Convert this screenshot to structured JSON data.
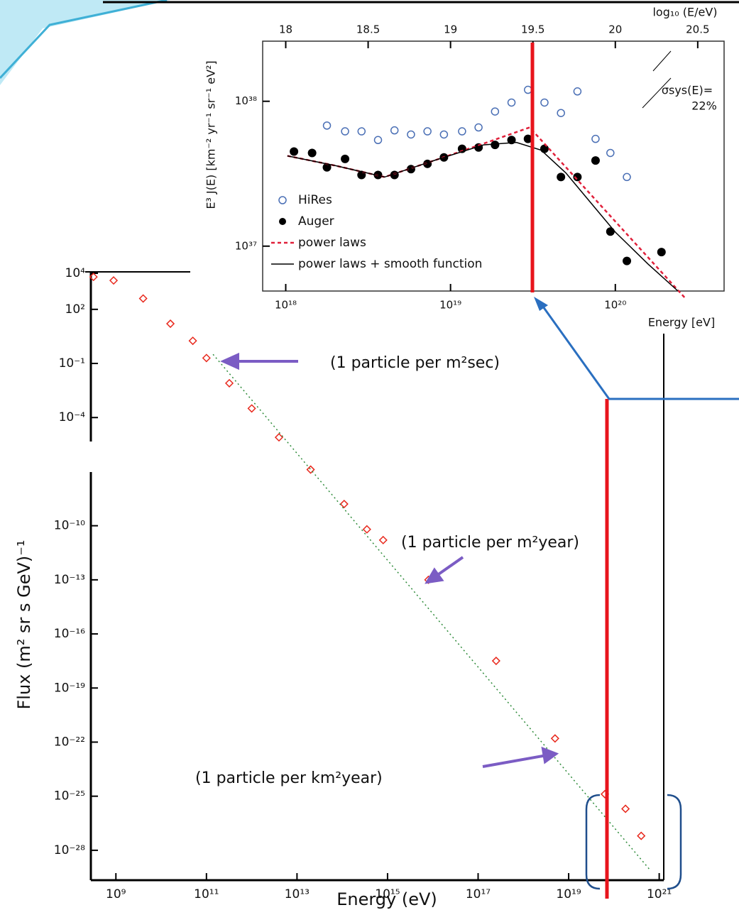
{
  "chart_data": [
    {
      "type": "scatter",
      "log_scale": true,
      "x_label": "Energy (eV)",
      "y_label": "Flux (m² sr s GeV)⁻¹",
      "xlim": [
        280000000.0,
        1.26e+21
      ],
      "ylim": [
        2.2e-30,
        12000.0
      ],
      "xticks": [
        {
          "value": 1000000000.0,
          "label": "10⁹"
        },
        {
          "value": 100000000000.0,
          "label": "10¹¹"
        },
        {
          "value": 10000000000000.0,
          "label": "10¹³"
        },
        {
          "value": 1000000000000000.0,
          "label": "10¹⁵"
        },
        {
          "value": 1e+17,
          "label": "10¹⁷"
        },
        {
          "value": 1e+19,
          "label": "10¹⁹"
        },
        {
          "value": 1e+21,
          "label": "10²¹"
        }
      ],
      "yticks": [
        {
          "value": 10000.0,
          "label": "10⁴"
        },
        {
          "value": 100,
          "label": "10²"
        },
        {
          "value": 0.1,
          "label": "10⁻¹"
        },
        {
          "value": 0.0001,
          "label": "10⁻⁴"
        },
        {
          "value": 1e-10,
          "label": "10⁻¹⁰"
        },
        {
          "value": 1e-13,
          "label": "10⁻¹³"
        },
        {
          "value": 1e-16,
          "label": "10⁻¹⁶"
        },
        {
          "value": 1e-19,
          "label": "10⁻¹⁹"
        },
        {
          "value": 1e-22,
          "label": "10⁻²²"
        },
        {
          "value": 1e-25,
          "label": "10⁻²⁵"
        },
        {
          "value": 1e-28,
          "label": "10⁻²⁸"
        }
      ],
      "series": [
        {
          "color": "#e8281c",
          "marker": "diamond",
          "x": [
            320000000.0,
            890000000.0,
            4000000000.0,
            16000000000.0,
            50000000000.0,
            100000000000.0,
            320000000000.0,
            1000000000000.0,
            4000000000000.0,
            20000000000000.0,
            110000000000000.0,
            350000000000000.0,
            800000000000000.0,
            8000000000000000.0,
            2.5e+17,
            5e+18,
            6.3e+19,
            1.8e+20,
            4e+20
          ],
          "values": [
            6300.0,
            4000.0,
            400.0,
            16,
            1.8,
            0.2,
            0.008,
            0.00032,
            8e-06,
            1.3e-07,
            1.6e-09,
            6.3e-11,
            1.6e-11,
            1e-13,
            3.2e-18,
            1.6e-22,
            1.3e-25,
            2e-26,
            6.3e-28
          ]
        },
        {
          "color": "#2e8b3a",
          "marker": "dotted-line",
          "x": [
            140000000000.0,
            6.3e+20
          ],
          "values": [
            0.32,
            8e-30
          ]
        }
      ],
      "annotations": [
        "(1 particle per m²sec)",
        "(1 particle per m²year)",
        "(1 particle per km²year)"
      ]
    },
    {
      "type": "scatter",
      "y_log_scale": true,
      "x_label": "Energy [eV]",
      "x2_label": "log₁₀ (E/eV)",
      "y_label": "E³ J(E) [km⁻² yr⁻¹ sr⁻¹ eV²]",
      "annotations": [
        "σsys(E)=",
        "22%"
      ],
      "legend": "lower left",
      "xlim": [
        17.86,
        20.66
      ],
      "ylim": [
        4.9e+36,
        2.6e+38
      ],
      "xticks": [
        18,
        18.5,
        19,
        19.5,
        20,
        20.5
      ],
      "x_bottom_ticks": [
        {
          "value": 18,
          "label": "10¹⁸"
        },
        {
          "value": 19,
          "label": "10¹⁹"
        },
        {
          "value": 20,
          "label": "10²⁰"
        }
      ],
      "yticks": [
        {
          "value": 1e+37,
          "label": "10³⁷"
        },
        {
          "value": 1e+38,
          "label": "10³⁸"
        }
      ],
      "series": [
        {
          "name": "HiRes",
          "color": "#4a6fb5",
          "marker": "open-circle",
          "x": [
            18.25,
            18.36,
            18.46,
            18.56,
            18.66,
            18.76,
            18.86,
            18.96,
            19.07,
            19.17,
            19.27,
            19.37,
            19.47,
            19.57,
            19.67,
            19.77,
            19.88,
            19.97,
            20.07
          ],
          "values": [
            6.8e+37,
            6.2e+37,
            6.2e+37,
            5.4e+37,
            6.3e+37,
            5.9e+37,
            6.2e+37,
            5.9e+37,
            6.2e+37,
            6.6e+37,
            8.5e+37,
            9.8e+37,
            1.2e+38,
            9.8e+37,
            8.3e+37,
            1.17e+38,
            5.5e+37,
            4.4e+37,
            3e+37
          ]
        },
        {
          "name": "Auger",
          "color": "#000000",
          "marker": "filled-circle",
          "x": [
            18.05,
            18.16,
            18.25,
            18.36,
            18.46,
            18.56,
            18.66,
            18.76,
            18.86,
            18.96,
            19.07,
            19.17,
            19.27,
            19.37,
            19.47,
            19.57,
            19.67,
            19.77,
            19.88,
            19.97,
            20.07,
            20.28
          ],
          "values": [
            4.5e+37,
            4.4e+37,
            3.5e+37,
            4e+37,
            3.1e+37,
            3.1e+37,
            3.1e+37,
            3.4e+37,
            3.7e+37,
            4.1e+37,
            4.7e+37,
            4.8e+37,
            5e+37,
            5.4e+37,
            5.5e+37,
            4.7e+37,
            3e+37,
            3e+37,
            3.9e+37,
            1.26e+37,
            7.9e+36,
            9.1e+36
          ]
        },
        {
          "name": "power laws",
          "color": "#e0203a",
          "marker": "dashed-line",
          "x": [
            18.01,
            18.3,
            18.6,
            18.9,
            19.2,
            19.48,
            20.43
          ],
          "values": [
            4.2e+37,
            3.6e+37,
            3e+37,
            3.9e+37,
            5.1e+37,
            6.6e+37,
            4.3e+36
          ]
        },
        {
          "name": "power laws + smooth function",
          "color": "#000000",
          "marker": "line",
          "x": [
            18.01,
            18.3,
            18.6,
            18.9,
            19.2,
            19.4,
            19.55,
            19.7,
            19.85,
            20.0,
            20.2,
            20.38
          ],
          "values": [
            4.2e+37,
            3.6e+37,
            3e+37,
            3.9e+37,
            5e+37,
            5.2e+37,
            4.6e+37,
            3.2e+37,
            2e+37,
            1.25e+37,
            7.5e+36,
            4.9e+36
          ]
        }
      ]
    }
  ]
}
